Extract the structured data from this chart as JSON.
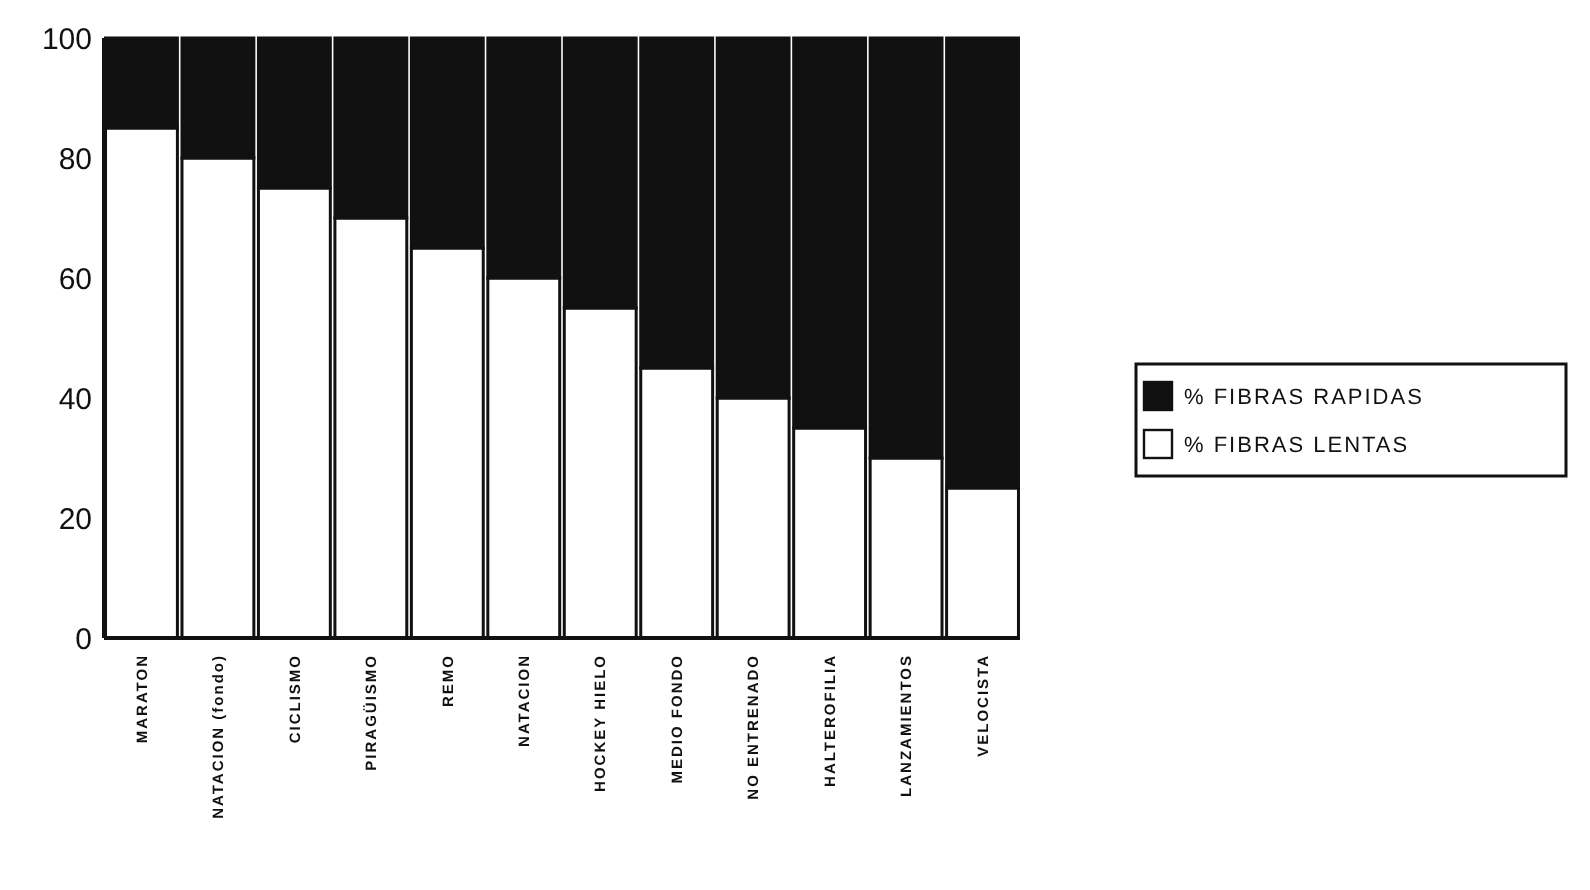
{
  "chart_data": {
    "type": "bar",
    "stacked": true,
    "categories": [
      "MARATON",
      "NATACION (fondo)",
      "CICLISMO",
      "PIRAGÜISMO",
      "REMO",
      "NATACION",
      "HOCKEY HIELO",
      "MEDIO FONDO",
      "NO ENTRENADO",
      "HALTEROFILIA",
      "LANZAMIENTOS",
      "VELOCISTA"
    ],
    "series": [
      {
        "name": "% FIBRAS LENTAS",
        "color": "#ffffff",
        "values": [
          85,
          80,
          75,
          70,
          65,
          60,
          55,
          45,
          40,
          35,
          30,
          25
        ]
      },
      {
        "name": "% FIBRAS RAPIDAS",
        "color": "#111111",
        "values": [
          15,
          20,
          25,
          30,
          35,
          40,
          45,
          55,
          60,
          65,
          70,
          75
        ]
      }
    ],
    "ylim": [
      0,
      100
    ],
    "yticks": [
      0,
      20,
      40,
      60,
      80,
      100
    ],
    "grid": false,
    "legend": "right"
  }
}
